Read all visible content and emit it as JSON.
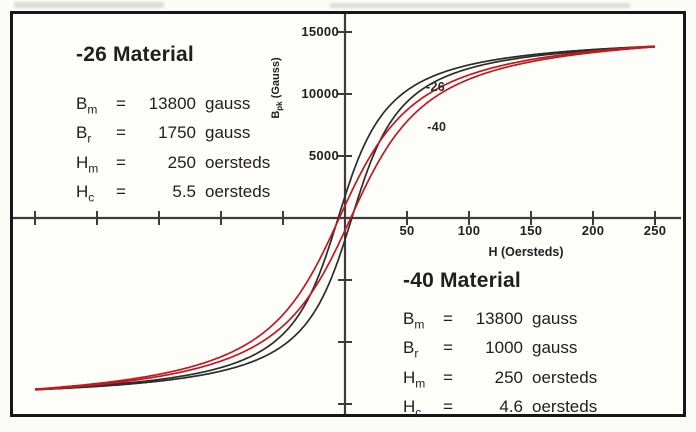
{
  "colors": {
    "page_background": "#fbfbf7",
    "plot_background": "#fdfdfa",
    "frame_border": "#171717",
    "axis": "#3c3c3c",
    "black_curve": "#2c2c2c",
    "red_curve": "#c2191f",
    "text": "#221e1f"
  },
  "panel_26": {
    "title": "-26 Material",
    "rows": [
      {
        "sym": "B",
        "sub": "m",
        "eq": "=",
        "val": "13800",
        "unit": "gauss"
      },
      {
        "sym": "B",
        "sub": "r",
        "eq": "=",
        "val": "1750",
        "unit": "gauss"
      },
      {
        "sym": "H",
        "sub": "m",
        "eq": "=",
        "val": "250",
        "unit": "oersteds"
      },
      {
        "sym": "H",
        "sub": "c",
        "eq": "=",
        "val": "5.5",
        "unit": "oersteds"
      }
    ]
  },
  "panel_40": {
    "title": "-40 Material",
    "rows": [
      {
        "sym": "B",
        "sub": "m",
        "eq": "=",
        "val": "13800",
        "unit": "gauss"
      },
      {
        "sym": "B",
        "sub": "r",
        "eq": "=",
        "val": "1000",
        "unit": "gauss"
      },
      {
        "sym": "H",
        "sub": "m",
        "eq": "=",
        "val": "250",
        "unit": "oersteds"
      },
      {
        "sym": "H",
        "sub": "c",
        "eq": "=",
        "val": "4.6",
        "unit": "oersteds"
      }
    ]
  },
  "chart_data": {
    "type": "line",
    "title": "",
    "xlabel": "H (Oersteds)",
    "ylabel": "Bpk (Gauss)",
    "ylabel_parts": {
      "sym": "B",
      "sub": "pk",
      "rest": " (Gauss)"
    },
    "xlim": [
      -272,
      272
    ],
    "ylim": [
      -16600,
      16600
    ],
    "grid": false,
    "x_ticks": [
      -250,
      -200,
      -150,
      -100,
      -50,
      50,
      100,
      150,
      200,
      250
    ],
    "x_tick_labels": [
      "50",
      "100",
      "150",
      "200",
      "250"
    ],
    "y_ticks": [
      -15000,
      -10000,
      -5000,
      5000,
      10000,
      15000
    ],
    "y_tick_labels": [
      "5000",
      "10000",
      "15000"
    ],
    "H_max_oersteds": 250,
    "series": [
      {
        "name": "-26 Material hysteresis loop",
        "label": "-26",
        "color": "#2c2c2c",
        "Bm_gauss": 13800,
        "Br_gauss": 1750,
        "Hm_oersteds": 250,
        "Hc_oersteds": 5.5,
        "lower_branch_points_H_gauss": [
          [
            -250,
            -13800
          ],
          [
            -100,
            -12350
          ],
          [
            -50,
            -10300
          ],
          [
            -25,
            -7650
          ],
          [
            0,
            -1750
          ],
          [
            5.5,
            0
          ],
          [
            25,
            5550
          ],
          [
            50,
            9350
          ],
          [
            100,
            12050
          ],
          [
            150,
            13050
          ],
          [
            200,
            13500
          ],
          [
            250,
            13800
          ]
        ],
        "upper_branch_note": "point reflection of lower branch through origin"
      },
      {
        "name": "-40 Material hysteresis loop",
        "label": "-40",
        "color": "#c2191f",
        "Bm_gauss": 13800,
        "Br_gauss": 1000,
        "Hm_oersteds": 250,
        "Hc_oersteds": 4.6,
        "lower_branch_points_H_gauss": [
          [
            -250,
            -13800
          ],
          [
            -100,
            -11550
          ],
          [
            -50,
            -8700
          ],
          [
            -25,
            -5750
          ],
          [
            0,
            -1000
          ],
          [
            4.6,
            0
          ],
          [
            25,
            4200
          ],
          [
            50,
            7800
          ],
          [
            100,
            11200
          ],
          [
            150,
            12600
          ],
          [
            200,
            13350
          ],
          [
            250,
            13800
          ]
        ],
        "upper_branch_note": "point reflection of lower branch through origin"
      }
    ],
    "annotations": [
      {
        "text": "-26",
        "H": 73,
        "B": 10550
      },
      {
        "text": "-40",
        "H": 74,
        "B": 7350
      }
    ]
  }
}
